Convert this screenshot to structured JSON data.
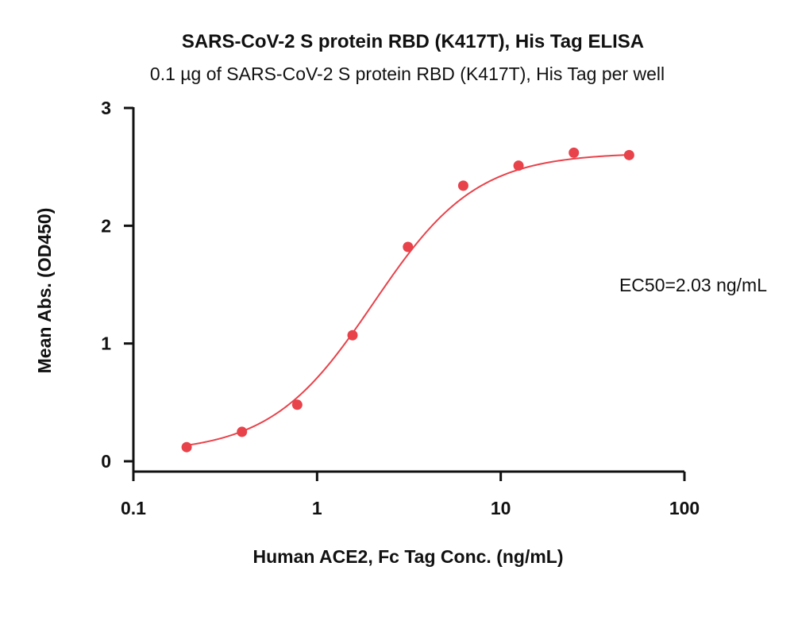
{
  "chart_data": {
    "type": "scatter",
    "title": "SARS-CoV-2 S protein RBD (K417T), His Tag ELISA",
    "subtitle": "0.1 µg of SARS-CoV-2 S protein RBD (K417T), His Tag per well",
    "xlabel": "Human ACE2, Fc Tag Conc. (ng/mL)",
    "ylabel": "Mean Abs. (OD450)",
    "x_scale": "log",
    "xlim": [
      0.1,
      100
    ],
    "ylim": [
      0,
      3
    ],
    "x_ticks": [
      0.1,
      1,
      10,
      100
    ],
    "x_tick_labels": [
      "0.1",
      "1",
      "10",
      "100"
    ],
    "y_ticks": [
      0,
      1,
      2,
      3
    ],
    "y_tick_labels": [
      "0",
      "1",
      "2",
      "3"
    ],
    "grid": false,
    "series": [
      {
        "x": [
          0.195,
          0.39,
          0.78,
          1.56,
          3.125,
          6.25,
          12.5,
          25,
          50
        ],
        "y": [
          0.12,
          0.25,
          0.48,
          1.07,
          1.82,
          2.34,
          2.51,
          2.62,
          2.6
        ],
        "color": "#e8424a",
        "fit": "four-parameter logistic"
      }
    ],
    "fit_params": {
      "bottom": 0.07,
      "top": 2.62,
      "ec50": 2.03,
      "hill": 1.55
    },
    "annotation": "EC50=2.03 ng/mL"
  }
}
